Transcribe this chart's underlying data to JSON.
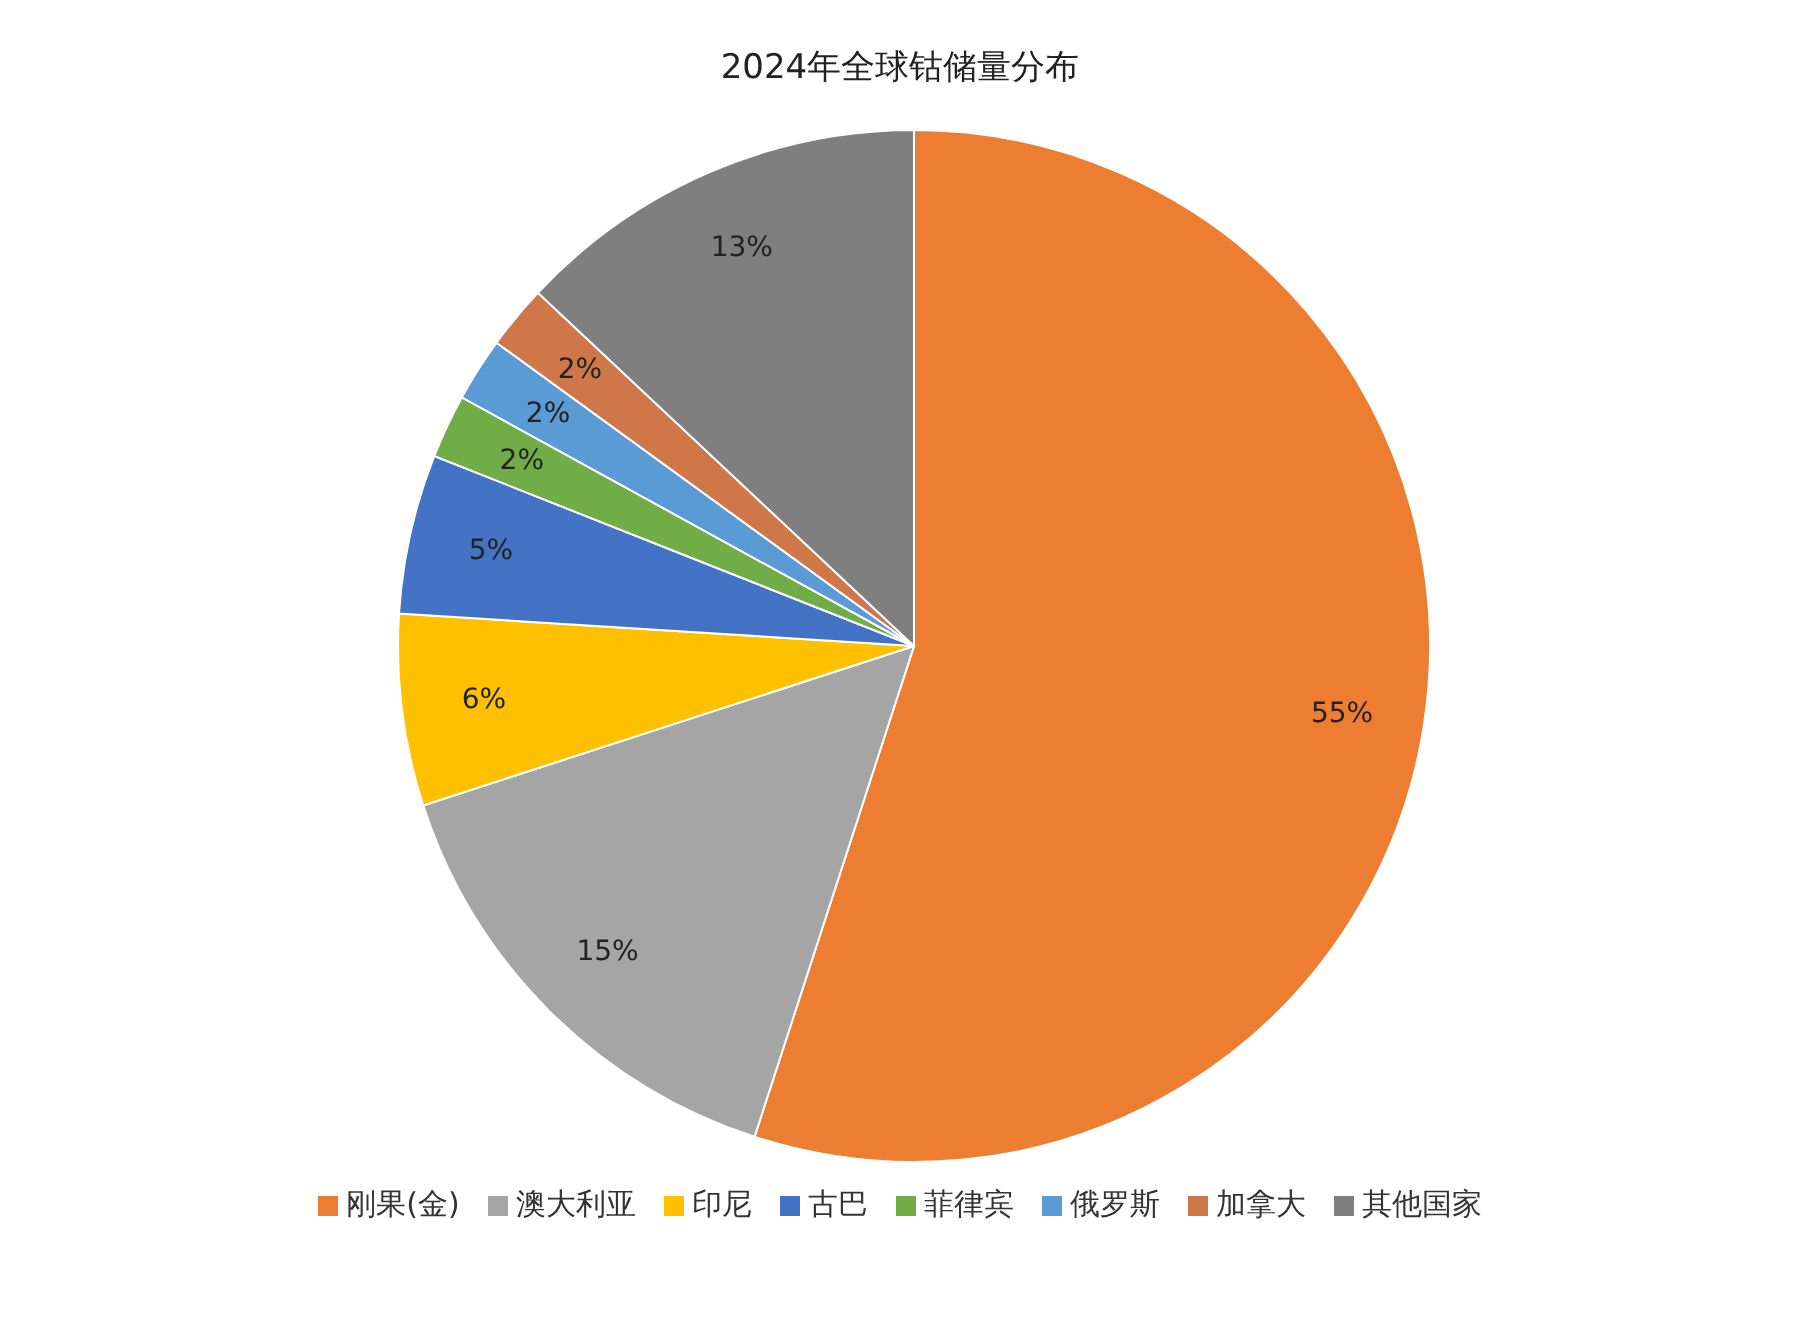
{
  "chart_data": {
    "type": "pie",
    "title": "2024年全球钴储量分布",
    "categories": [
      "刚果(金)",
      "澳大利亚",
      "印尼",
      "古巴",
      "菲律宾",
      "俄罗斯",
      "加拿大",
      "其他国家"
    ],
    "values": [
      55,
      15,
      6,
      5,
      2,
      2,
      2,
      13
    ],
    "colors": [
      "#ed7d31",
      "#a5a5a5",
      "#ffc000",
      "#4472c4",
      "#70ad47",
      "#5b9bd5",
      "#d0774a",
      "#7f7f7f"
    ],
    "value_labels": [
      "55%",
      "15%",
      "6%",
      "5%",
      "2%",
      "2%",
      "2%",
      "13%"
    ],
    "legend": "bottom"
  }
}
